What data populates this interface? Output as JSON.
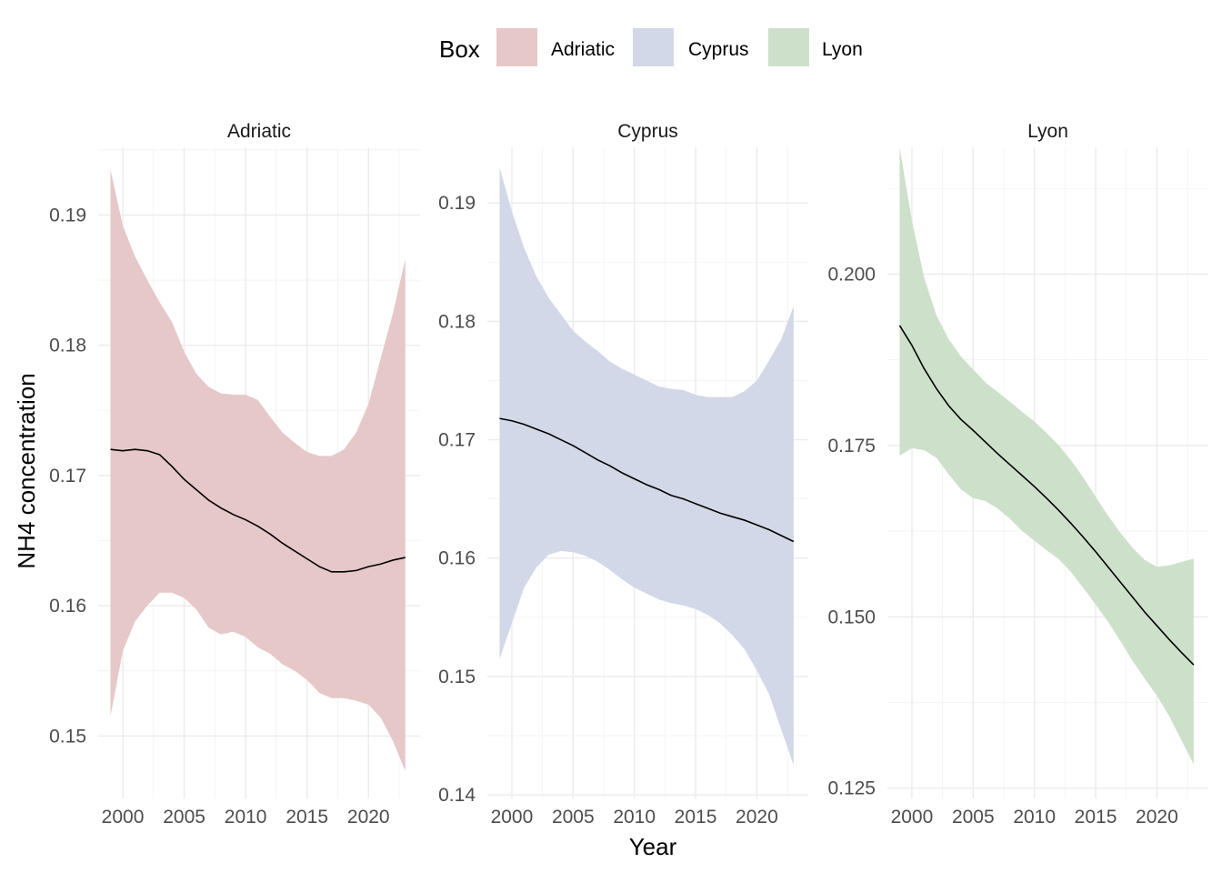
{
  "chart_data": {
    "type": "area",
    "description_of_marks": "Smoothed trend line with shaded confidence ribbon per facet",
    "xlabel": "Year",
    "ylabel": "NH4 concentration",
    "legend": {
      "title": "Box",
      "position": "top",
      "entries": [
        {
          "label": "Adriatic",
          "color": "#e6c8c9"
        },
        {
          "label": "Cyprus",
          "color": "#d3d8e8"
        },
        {
          "label": "Lyon",
          "color": "#cde1ca"
        }
      ]
    },
    "grid": true,
    "facets": [
      {
        "name": "Adriatic",
        "fill_color": "#e6c8c9",
        "xlim": [
          1998,
          2024.2
        ],
        "ylim": [
          0.1452,
          0.1952
        ],
        "x_ticks": [
          2000,
          2005,
          2010,
          2015,
          2020
        ],
        "y_ticks": [
          0.15,
          0.16,
          0.17,
          0.18,
          0.19
        ],
        "y_tick_labels": [
          "0.15",
          "0.16",
          "0.17",
          "0.18",
          "0.19"
        ],
        "x": [
          1999,
          2000,
          2001,
          2002,
          2003,
          2004,
          2005,
          2006,
          2007,
          2008,
          2009,
          2010,
          2011,
          2012,
          2013,
          2014,
          2015,
          2016,
          2017,
          2018,
          2019,
          2020,
          2021,
          2022,
          2023
        ],
        "fit": [
          0.172,
          0.1719,
          0.172,
          0.1719,
          0.1716,
          0.1707,
          0.1697,
          0.1689,
          0.1681,
          0.1675,
          0.167,
          0.1666,
          0.1661,
          0.1655,
          0.1648,
          0.1642,
          0.1636,
          0.163,
          0.1626,
          0.1626,
          0.1627,
          0.163,
          0.1632,
          0.1635,
          0.1637
        ],
        "lower": [
          0.1515,
          0.1565,
          0.1588,
          0.16,
          0.161,
          0.161,
          0.1606,
          0.1597,
          0.1583,
          0.1578,
          0.158,
          0.1576,
          0.1568,
          0.1563,
          0.1555,
          0.155,
          0.1543,
          0.1533,
          0.1529,
          0.1529,
          0.1527,
          0.1524,
          0.1514,
          0.1496,
          0.1473
        ],
        "upper": [
          0.1935,
          0.1892,
          0.1868,
          0.185,
          0.1833,
          0.1818,
          0.1795,
          0.1778,
          0.1768,
          0.1763,
          0.1762,
          0.1762,
          0.1758,
          0.1745,
          0.1733,
          0.1725,
          0.1718,
          0.1715,
          0.1715,
          0.172,
          0.1733,
          0.1755,
          0.179,
          0.1825,
          0.1866
        ]
      },
      {
        "name": "Cyprus",
        "fill_color": "#d3d8e8",
        "xlim": [
          1998,
          2024.2
        ],
        "ylim": [
          0.1397,
          0.1947
        ],
        "x_ticks": [
          2000,
          2005,
          2010,
          2015,
          2020
        ],
        "y_ticks": [
          0.14,
          0.15,
          0.16,
          0.17,
          0.18,
          0.19
        ],
        "y_tick_labels": [
          "0.14",
          "0.15",
          "0.16",
          "0.17",
          "0.18",
          "0.19"
        ],
        "x": [
          1999,
          2000,
          2001,
          2002,
          2003,
          2004,
          2005,
          2006,
          2007,
          2008,
          2009,
          2010,
          2011,
          2012,
          2013,
          2014,
          2015,
          2016,
          2017,
          2018,
          2019,
          2020,
          2021,
          2022,
          2023
        ],
        "fit": [
          0.1718,
          0.1716,
          0.1713,
          0.1709,
          0.1705,
          0.17,
          0.1695,
          0.1689,
          0.1683,
          0.1678,
          0.1672,
          0.1667,
          0.1662,
          0.1658,
          0.1653,
          0.165,
          0.1646,
          0.1642,
          0.1638,
          0.1635,
          0.1632,
          0.1628,
          0.1624,
          0.1619,
          0.1614
        ],
        "lower": [
          0.1515,
          0.1545,
          0.1575,
          0.1592,
          0.1603,
          0.1606,
          0.1605,
          0.1602,
          0.1597,
          0.159,
          0.1582,
          0.1575,
          0.157,
          0.1565,
          0.1562,
          0.156,
          0.1557,
          0.1552,
          0.1545,
          0.1535,
          0.1523,
          0.1505,
          0.1485,
          0.1455,
          0.1425
        ],
        "upper": [
          0.193,
          0.1893,
          0.1862,
          0.1838,
          0.182,
          0.1806,
          0.1792,
          0.1783,
          0.1775,
          0.1766,
          0.176,
          0.1755,
          0.175,
          0.1745,
          0.1743,
          0.1742,
          0.1738,
          0.1736,
          0.1736,
          0.1736,
          0.1741,
          0.175,
          0.1767,
          0.1785,
          0.1813
        ]
      },
      {
        "name": "Lyon",
        "fill_color": "#cde1ca",
        "xlim": [
          1998,
          2024.2
        ],
        "ylim": [
          0.1235,
          0.2185
        ],
        "x_ticks": [
          2000,
          2005,
          2010,
          2015,
          2020
        ],
        "y_ticks": [
          0.125,
          0.15,
          0.175,
          0.2
        ],
        "y_tick_labels": [
          "0.125",
          "0.150",
          "0.175",
          "0.200"
        ],
        "x": [
          1999,
          2000,
          2001,
          2002,
          2003,
          2004,
          2005,
          2006,
          2007,
          2008,
          2009,
          2010,
          2011,
          2012,
          2013,
          2014,
          2015,
          2016,
          2017,
          2018,
          2019,
          2020,
          2021,
          2022,
          2023
        ],
        "fit": [
          0.1925,
          0.1896,
          0.1862,
          0.1833,
          0.1808,
          0.1788,
          0.1772,
          0.1755,
          0.1738,
          0.1722,
          0.1706,
          0.169,
          0.1673,
          0.1655,
          0.1636,
          0.1616,
          0.1595,
          0.1573,
          0.1551,
          0.1529,
          0.1507,
          0.1487,
          0.1467,
          0.1448,
          0.143
        ],
        "lower": [
          0.1735,
          0.1746,
          0.1743,
          0.1732,
          0.1708,
          0.1686,
          0.1673,
          0.1669,
          0.1658,
          0.1643,
          0.1625,
          0.1611,
          0.1597,
          0.1584,
          0.1565,
          0.1542,
          0.1518,
          0.1493,
          0.1465,
          0.1436,
          0.141,
          0.1385,
          0.1355,
          0.132,
          0.1285
        ],
        "upper": [
          0.2185,
          0.2078,
          0.1995,
          0.194,
          0.1905,
          0.188,
          0.1861,
          0.1842,
          0.1828,
          0.1814,
          0.1799,
          0.1785,
          0.1768,
          0.175,
          0.1728,
          0.1703,
          0.1675,
          0.1648,
          0.1623,
          0.1601,
          0.1583,
          0.1573,
          0.1575,
          0.158,
          0.1585
        ]
      }
    ]
  }
}
